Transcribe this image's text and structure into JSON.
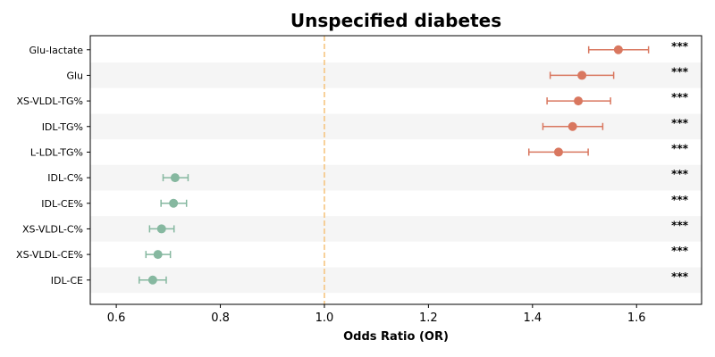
{
  "chart_data": {
    "type": "forest",
    "title": "Unspecified diabetes",
    "xlabel": "Odds Ratio (OR)",
    "ylabel": "",
    "xlim": [
      0.55,
      1.725
    ],
    "x_ticks": [
      "0.6",
      "0.8",
      "1.0",
      "1.2",
      "1.4",
      "1.6"
    ],
    "reference_line": 1.0,
    "grid": false,
    "row_shading": "alternating",
    "colors": {
      "risk": "#d9775f",
      "protective": "#86b8a0",
      "reference_line": "#f5c27a",
      "row_band": "#f5f5f5"
    },
    "rows": [
      {
        "label": "Glu-lactate",
        "or": 1.565,
        "lo": 1.508,
        "hi": 1.623,
        "sig": "***"
      },
      {
        "label": "Glu",
        "or": 1.495,
        "lo": 1.434,
        "hi": 1.556,
        "sig": "***"
      },
      {
        "label": "XS-VLDL-TG%",
        "or": 1.488,
        "lo": 1.428,
        "hi": 1.55,
        "sig": "***"
      },
      {
        "label": "IDL-TG%",
        "or": 1.477,
        "lo": 1.42,
        "hi": 1.535,
        "sig": "***"
      },
      {
        "label": "L-LDL-TG%",
        "or": 1.45,
        "lo": 1.393,
        "hi": 1.507,
        "sig": "***"
      },
      {
        "label": "IDL-C%",
        "or": 0.713,
        "lo": 0.69,
        "hi": 0.738,
        "sig": "***"
      },
      {
        "label": "IDL-CE%",
        "or": 0.71,
        "lo": 0.686,
        "hi": 0.735,
        "sig": "***"
      },
      {
        "label": "XS-VLDL-C%",
        "or": 0.687,
        "lo": 0.664,
        "hi": 0.711,
        "sig": "***"
      },
      {
        "label": "XS-VLDL-CE%",
        "or": 0.68,
        "lo": 0.657,
        "hi": 0.704,
        "sig": "***"
      },
      {
        "label": "IDL-CE",
        "or": 0.67,
        "lo": 0.644,
        "hi": 0.696,
        "sig": "***"
      }
    ]
  }
}
